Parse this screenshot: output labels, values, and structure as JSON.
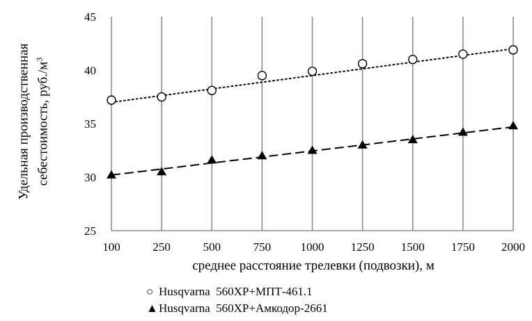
{
  "chart_data": {
    "type": "scatter",
    "ylabel_line1": "Удельная производственная",
    "ylabel_line2": "себестоимость, руб./м",
    "ylabel_sup": "3",
    "xlabel": "среднее расстояние трелевки (подвозки), м",
    "categories": [
      "100",
      "250",
      "500",
      "750",
      "1000",
      "1250",
      "1500",
      "1750",
      "2000"
    ],
    "ylim": [
      25,
      45
    ],
    "yticks": [
      "25",
      "30",
      "35",
      "40",
      "45"
    ],
    "grid": "vertical",
    "legend_position": "bottom",
    "series": [
      {
        "name": "Husqvarna  560XP+МПТ-461.1",
        "marker": "open-circle",
        "trendline": "dotted",
        "values": [
          37.2,
          37.5,
          38.1,
          39.5,
          39.9,
          40.6,
          41.0,
          41.5,
          41.9
        ],
        "trend": [
          37.0,
          42.0
        ]
      },
      {
        "name": "Husqvarna  560XP+Амкодор-2661",
        "marker": "filled-triangle",
        "trendline": "dashed",
        "values": [
          30.2,
          30.5,
          31.6,
          32.0,
          32.5,
          33.0,
          33.5,
          34.2,
          34.8
        ],
        "trend": [
          30.2,
          34.7
        ]
      }
    ]
  },
  "legend": {
    "marker1": "○",
    "marker2": "▲"
  }
}
